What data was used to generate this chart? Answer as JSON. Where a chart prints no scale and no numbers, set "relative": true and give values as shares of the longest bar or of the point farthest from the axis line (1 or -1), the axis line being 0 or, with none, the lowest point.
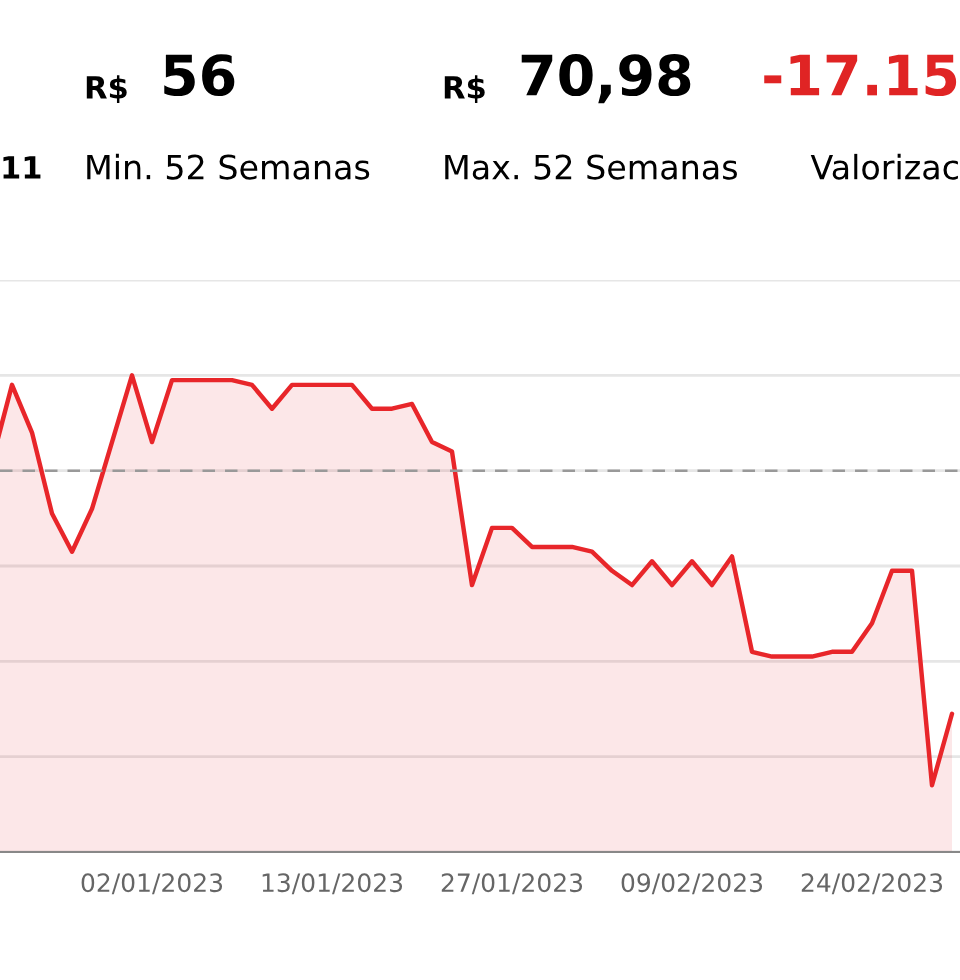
{
  "chart_data": {
    "type": "area",
    "relative": true,
    "categories": [
      null,
      null,
      null,
      null,
      null,
      null,
      null,
      null,
      "02/01/2023",
      null,
      null,
      null,
      null,
      null,
      null,
      null,
      null,
      "13/01/2023",
      null,
      null,
      null,
      null,
      null,
      null,
      null,
      null,
      "27/01/2023",
      null,
      null,
      null,
      null,
      null,
      null,
      null,
      null,
      "09/02/2023",
      null,
      null,
      null,
      null,
      null,
      null,
      null,
      null,
      "24/02/2023",
      null,
      null,
      null,
      null
    ],
    "series": [
      {
        "color": "#e8262a",
        "values": [
          0.82,
          0.98,
          0.88,
          0.71,
          0.63,
          0.72,
          0.86,
          1.0,
          0.86,
          0.99,
          0.99,
          0.99,
          0.99,
          0.98,
          0.93,
          0.98,
          0.98,
          0.98,
          0.98,
          0.93,
          0.93,
          0.94,
          0.86,
          0.84,
          0.56,
          0.68,
          0.68,
          0.64,
          0.64,
          0.64,
          0.63,
          0.59,
          0.56,
          0.61,
          0.56,
          0.61,
          0.56,
          0.62,
          0.42,
          0.41,
          0.41,
          0.41,
          0.42,
          0.42,
          0.48,
          0.59,
          0.59,
          0.14,
          0.29
        ]
      }
    ],
    "ref_lines": [
      {
        "axis": "y",
        "value": 0.8,
        "line_style": "dashed",
        "color": "#999999"
      }
    ],
    "grid": "y",
    "annotations": [
      "R$",
      "56",
      "Min. 52 Semanas",
      "R$",
      "70,98",
      "Max. 52 Semanas",
      "-17.15",
      "Valorizac",
      "11"
    ]
  }
}
